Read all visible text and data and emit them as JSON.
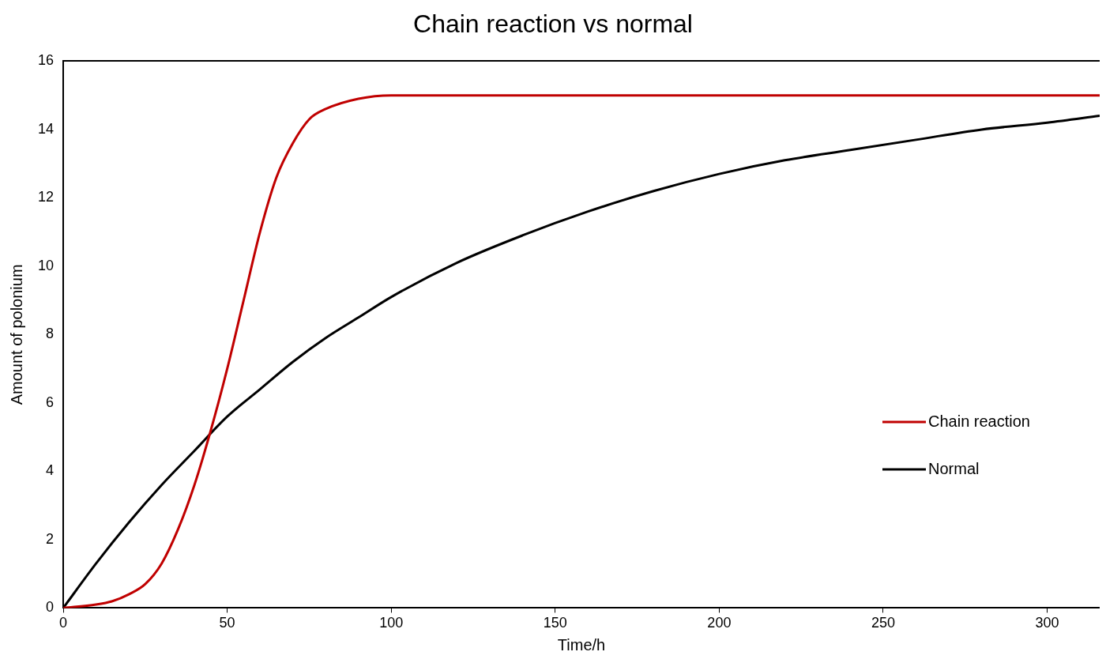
{
  "chart_data": {
    "type": "line",
    "title": "Chain reaction vs normal",
    "xlabel": "Time/h",
    "ylabel": "Amount of polonium",
    "xlim": [
      0,
      316
    ],
    "xticks": [
      0,
      50,
      100,
      150,
      200,
      250,
      300
    ],
    "ylim": [
      0,
      16
    ],
    "yticks": [
      0,
      2,
      4,
      6,
      8,
      10,
      12,
      14,
      16
    ],
    "grid": false,
    "legend": "right",
    "marker": "none",
    "line_style": "solid",
    "series": [
      {
        "name": "Chain reaction",
        "color": "#c00000",
        "x": [
          0,
          10,
          15,
          20,
          25,
          30,
          35,
          40,
          45,
          50,
          55,
          60,
          65,
          70,
          75,
          80,
          90,
          100,
          120,
          150,
          200,
          250,
          300,
          316
        ],
        "values": [
          0,
          0.1,
          0.2,
          0.4,
          0.7,
          1.3,
          2.3,
          3.6,
          5.2,
          7.0,
          9.0,
          11.0,
          12.6,
          13.6,
          14.3,
          14.6,
          14.9,
          15,
          15,
          15,
          15,
          15,
          15,
          15
        ]
      },
      {
        "name": "Normal",
        "color": "#000000",
        "x": [
          0,
          10,
          20,
          30,
          40,
          50,
          60,
          70,
          80,
          90,
          100,
          120,
          140,
          160,
          180,
          200,
          220,
          240,
          260,
          280,
          300,
          316
        ],
        "values": [
          0,
          1.3,
          2.5,
          3.6,
          4.6,
          5.6,
          6.4,
          7.2,
          7.9,
          8.5,
          9.1,
          10.1,
          10.9,
          11.6,
          12.2,
          12.7,
          13.1,
          13.4,
          13.7,
          14.0,
          14.2,
          14.4
        ]
      }
    ]
  }
}
